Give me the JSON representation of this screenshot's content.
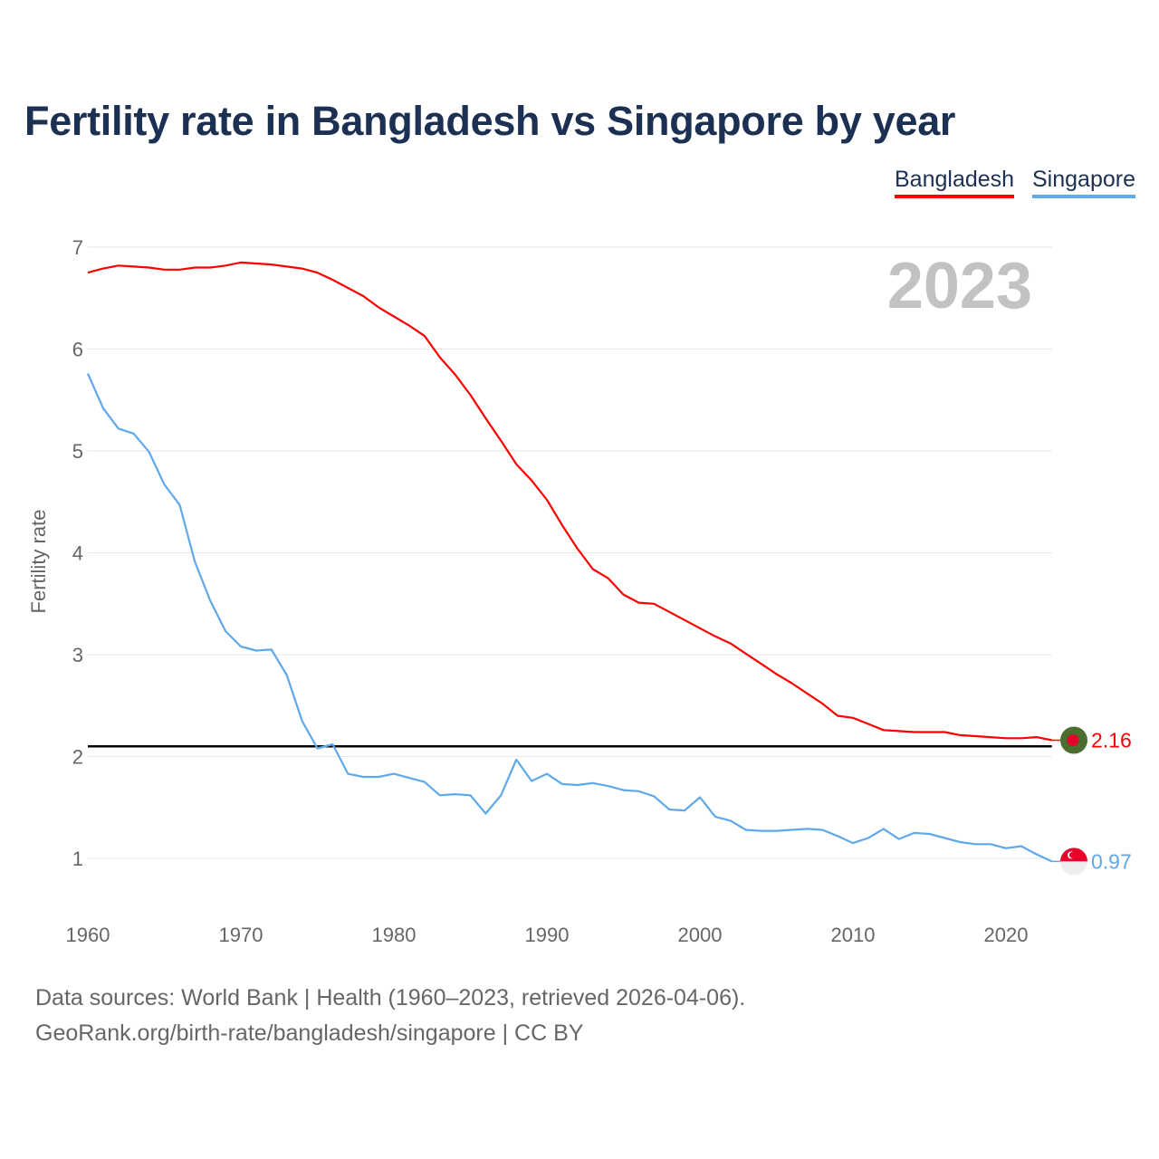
{
  "chart_data": {
    "type": "line",
    "title": "Fertility rate in Bangladesh vs Singapore by year",
    "xlabel": "",
    "ylabel": "Fertility rate",
    "xlim": [
      1960,
      2023
    ],
    "ylim": [
      0.4,
      7.2
    ],
    "x_ticks": [
      1960,
      1970,
      1980,
      1990,
      2000,
      2010,
      2020
    ],
    "y_ticks": [
      1,
      2,
      3,
      4,
      5,
      6,
      7
    ],
    "grid": true,
    "legend_position": "top-right",
    "current_year_label": "2023",
    "reference_line": 2.1,
    "x": [
      1960,
      1961,
      1962,
      1963,
      1964,
      1965,
      1966,
      1967,
      1968,
      1969,
      1970,
      1971,
      1972,
      1973,
      1974,
      1975,
      1976,
      1977,
      1978,
      1979,
      1980,
      1981,
      1982,
      1983,
      1984,
      1985,
      1986,
      1987,
      1988,
      1989,
      1990,
      1991,
      1992,
      1993,
      1994,
      1995,
      1996,
      1997,
      1998,
      1999,
      2000,
      2001,
      2002,
      2003,
      2004,
      2005,
      2006,
      2007,
      2008,
      2009,
      2010,
      2011,
      2012,
      2013,
      2014,
      2015,
      2016,
      2017,
      2018,
      2019,
      2020,
      2021,
      2022,
      2023
    ],
    "series": [
      {
        "name": "Bangladesh",
        "color": "#ff0000",
        "end_label": "2.16",
        "values": [
          6.75,
          6.79,
          6.82,
          6.81,
          6.8,
          6.78,
          6.78,
          6.8,
          6.8,
          6.82,
          6.85,
          6.84,
          6.83,
          6.81,
          6.79,
          6.75,
          6.68,
          6.6,
          6.52,
          6.41,
          6.32,
          6.23,
          6.13,
          5.92,
          5.75,
          5.55,
          5.32,
          5.1,
          4.87,
          4.71,
          4.52,
          4.27,
          4.04,
          3.84,
          3.75,
          3.59,
          3.51,
          3.5,
          3.42,
          3.34,
          3.26,
          3.18,
          3.11,
          3.01,
          2.91,
          2.81,
          2.72,
          2.62,
          2.52,
          2.4,
          2.38,
          2.32,
          2.26,
          2.25,
          2.24,
          2.24,
          2.24,
          2.21,
          2.2,
          2.19,
          2.18,
          2.18,
          2.19,
          2.16
        ]
      },
      {
        "name": "Singapore",
        "color": "#5fa8ea",
        "end_label": "0.97",
        "values": [
          5.76,
          5.42,
          5.22,
          5.17,
          4.99,
          4.67,
          4.47,
          3.91,
          3.53,
          3.23,
          3.08,
          3.04,
          3.05,
          2.8,
          2.35,
          2.08,
          2.12,
          1.83,
          1.8,
          1.8,
          1.83,
          1.79,
          1.75,
          1.62,
          1.63,
          1.62,
          1.44,
          1.62,
          1.97,
          1.76,
          1.83,
          1.73,
          1.72,
          1.74,
          1.71,
          1.67,
          1.66,
          1.61,
          1.48,
          1.47,
          1.6,
          1.41,
          1.37,
          1.28,
          1.27,
          1.27,
          1.28,
          1.29,
          1.28,
          1.22,
          1.15,
          1.2,
          1.29,
          1.19,
          1.25,
          1.24,
          1.2,
          1.16,
          1.14,
          1.14,
          1.1,
          1.12,
          1.04,
          0.97
        ]
      }
    ]
  },
  "footer": {
    "sources": "Data sources: World Bank | Health (1960–2023, retrieved 2026-04-06).",
    "credit": "GeoRank.org/birth-rate/bangladesh/singapore | CC BY"
  }
}
